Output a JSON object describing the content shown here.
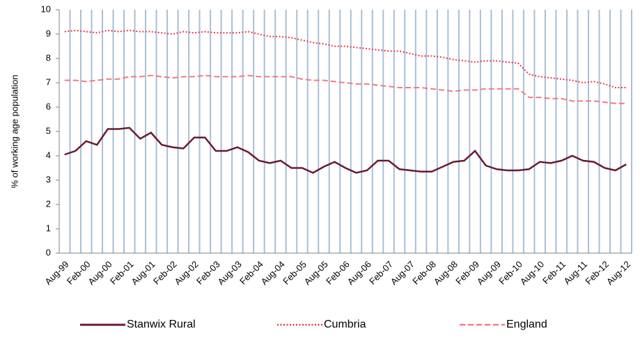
{
  "chart_data": {
    "type": "line",
    "ylabel": "% of working age population",
    "categories": [
      "Aug-99",
      null,
      "Feb-00",
      null,
      "Aug-00",
      null,
      "Feb-01",
      null,
      "Aug-01",
      null,
      "Feb-02",
      null,
      "Aug-02",
      null,
      "Feb-03",
      null,
      "Aug-03",
      null,
      "Feb-04",
      null,
      "Aug-04",
      null,
      "Feb-05",
      null,
      "Aug-05",
      null,
      "Feb-06",
      null,
      "Aug-06",
      null,
      "Feb-07",
      null,
      "Aug-07",
      null,
      "Feb-08",
      null,
      "Aug-08",
      null,
      "Feb-09",
      null,
      "Aug-09",
      null,
      "Feb-10",
      null,
      "Aug-10",
      null,
      "Feb-11",
      null,
      "Aug-11",
      null,
      "Feb-12",
      null,
      "Aug-12"
    ],
    "series": [
      {
        "name": "Stanwix Rural",
        "color": "#6b1a2e",
        "dash": "solid",
        "values": [
          4.05,
          4.2,
          4.6,
          4.45,
          5.1,
          5.1,
          5.15,
          4.7,
          4.95,
          4.45,
          4.35,
          4.3,
          4.75,
          4.75,
          4.2,
          4.2,
          4.35,
          4.15,
          3.8,
          3.7,
          3.8,
          3.5,
          3.5,
          3.3,
          3.55,
          3.75,
          3.5,
          3.3,
          3.4,
          3.8,
          3.8,
          3.45,
          3.4,
          3.35,
          3.35,
          3.55,
          3.75,
          3.8,
          4.2,
          3.6,
          3.45,
          3.4,
          3.4,
          3.45,
          3.75,
          3.7,
          3.8,
          4.0,
          3.8,
          3.75,
          3.5,
          3.4,
          3.65
        ]
      },
      {
        "name": "Cumbria",
        "color": "#e8394a",
        "dash": "dotted",
        "values": [
          9.1,
          9.15,
          9.1,
          9.05,
          9.15,
          9.1,
          9.15,
          9.1,
          9.1,
          9.05,
          9.0,
          9.1,
          9.05,
          9.1,
          9.05,
          9.05,
          9.05,
          9.1,
          9.0,
          8.9,
          8.9,
          8.85,
          8.75,
          8.65,
          8.6,
          8.5,
          8.5,
          8.45,
          8.4,
          8.35,
          8.3,
          8.3,
          8.2,
          8.1,
          8.1,
          8.05,
          7.95,
          7.9,
          7.85,
          7.9,
          7.9,
          7.85,
          7.8,
          7.35,
          7.25,
          7.2,
          7.15,
          7.1,
          7.0,
          7.05,
          6.95,
          6.8,
          6.8
        ]
      },
      {
        "name": "England",
        "color": "#f07b86",
        "dash": "dashed",
        "values": [
          7.1,
          7.1,
          7.05,
          7.1,
          7.15,
          7.15,
          7.25,
          7.25,
          7.3,
          7.25,
          7.2,
          7.25,
          7.25,
          7.3,
          7.25,
          7.25,
          7.25,
          7.3,
          7.25,
          7.25,
          7.25,
          7.25,
          7.15,
          7.1,
          7.1,
          7.05,
          7.0,
          6.95,
          6.95,
          6.9,
          6.85,
          6.8,
          6.8,
          6.8,
          6.75,
          6.7,
          6.65,
          6.7,
          6.7,
          6.75,
          6.75,
          6.75,
          6.75,
          6.4,
          6.4,
          6.35,
          6.35,
          6.25,
          6.25,
          6.25,
          6.2,
          6.15,
          6.15
        ]
      }
    ],
    "ylim": [
      0,
      10
    ],
    "yticks": [
      0,
      1,
      2,
      3,
      4,
      5,
      6,
      7,
      8,
      9,
      10
    ],
    "grid": "vertical",
    "legend": "bottom"
  }
}
